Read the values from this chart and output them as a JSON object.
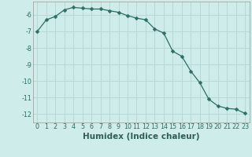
{
  "x": [
    0,
    1,
    2,
    3,
    4,
    5,
    6,
    7,
    8,
    9,
    10,
    11,
    12,
    13,
    14,
    15,
    16,
    17,
    18,
    19,
    20,
    21,
    22,
    23
  ],
  "y": [
    -7.0,
    -6.3,
    -6.1,
    -5.7,
    -5.55,
    -5.6,
    -5.65,
    -5.65,
    -5.75,
    -5.85,
    -6.05,
    -6.2,
    -6.3,
    -6.85,
    -7.1,
    -8.2,
    -8.5,
    -9.4,
    -10.1,
    -11.1,
    -11.5,
    -11.65,
    -11.7,
    -11.95
  ],
  "line_color": "#2e6e62",
  "marker": "D",
  "marker_size": 2.5,
  "bg_color": "#cdecea",
  "grid_color": "#b8d8d5",
  "xlabel": "Humidex (Indice chaleur)",
  "xlim": [
    -0.5,
    23.5
  ],
  "ylim": [
    -12.5,
    -5.2
  ],
  "yticks": [
    -12,
    -11,
    -10,
    -9,
    -8,
    -7,
    -6
  ],
  "xticks": [
    0,
    1,
    2,
    3,
    4,
    5,
    6,
    7,
    8,
    9,
    10,
    11,
    12,
    13,
    14,
    15,
    16,
    17,
    18,
    19,
    20,
    21,
    22,
    23
  ],
  "tick_fontsize": 5.8,
  "xlabel_fontsize": 7.5
}
